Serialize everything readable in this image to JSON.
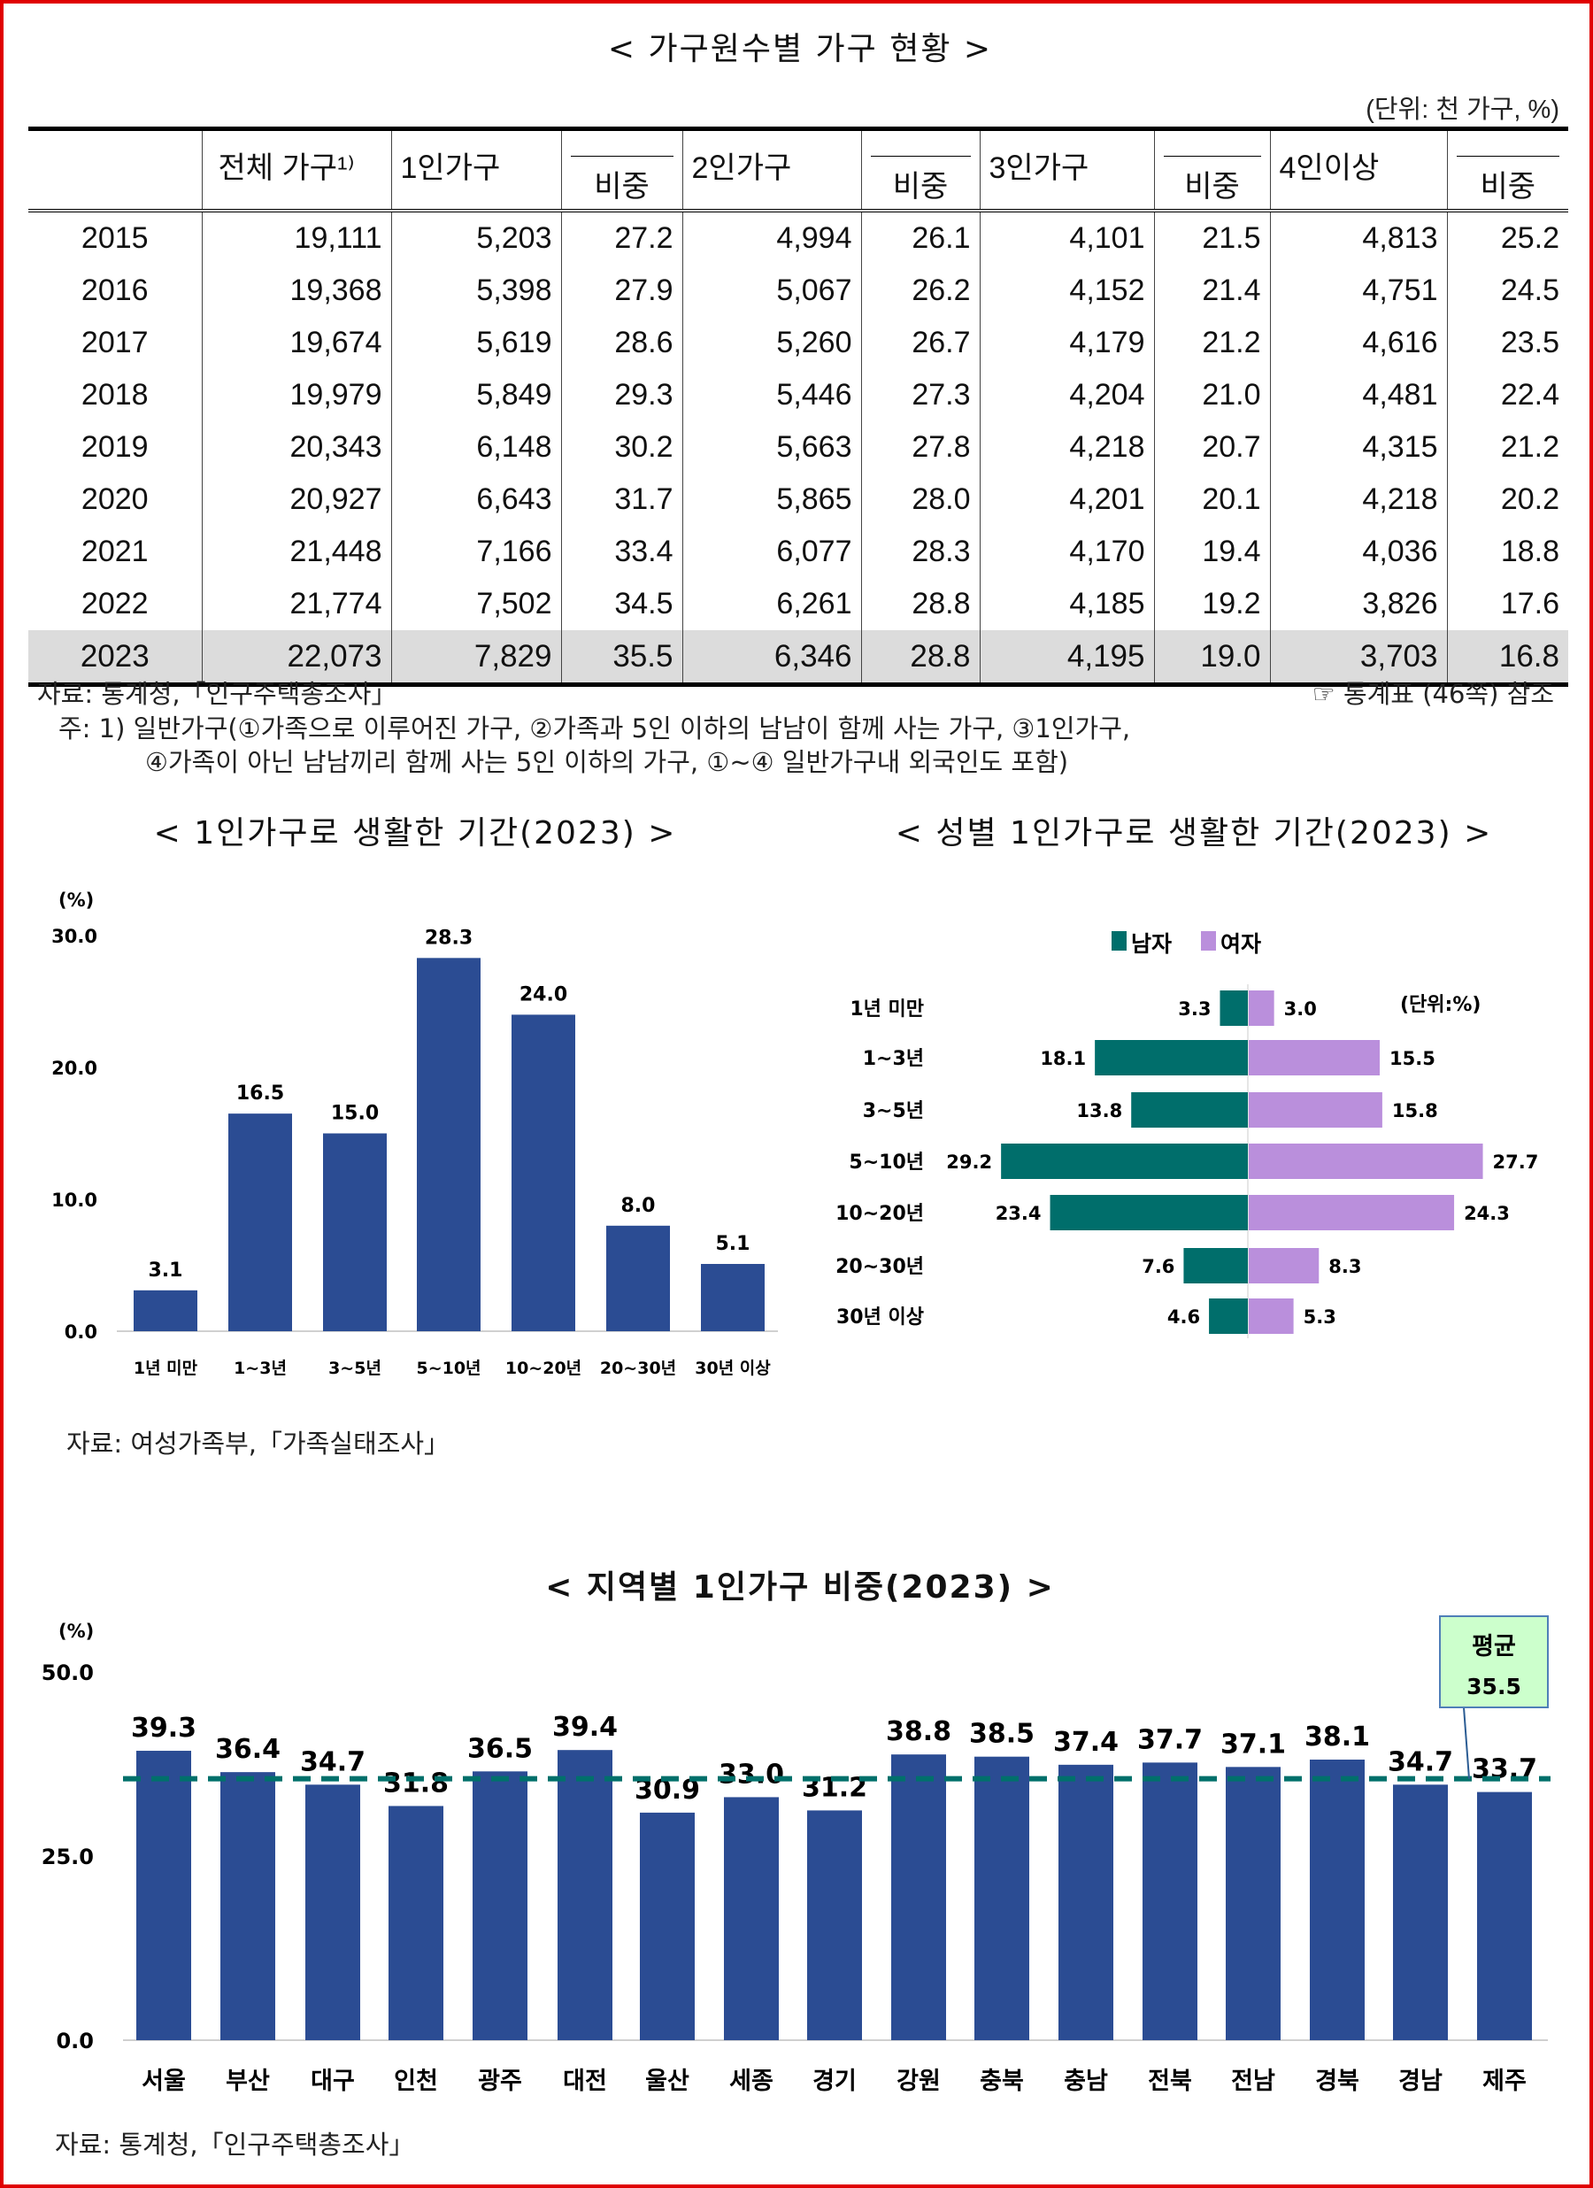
{
  "table_section": {
    "title": "< 가구원수별 가구 현황 >",
    "unit": "(단위: 천 가구, %)",
    "headers": [
      "",
      "전체 가구¹⁾",
      "1인가구",
      "비중",
      "2인가구",
      "비중",
      "3인가구",
      "비중",
      "4인이상",
      "비중"
    ],
    "rows": [
      [
        "2015",
        "19,111",
        "5,203",
        "27.2",
        "4,994",
        "26.1",
        "4,101",
        "21.5",
        "4,813",
        "25.2"
      ],
      [
        "2016",
        "19,368",
        "5,398",
        "27.9",
        "5,067",
        "26.2",
        "4,152",
        "21.4",
        "4,751",
        "24.5"
      ],
      [
        "2017",
        "19,674",
        "5,619",
        "28.6",
        "5,260",
        "26.7",
        "4,179",
        "21.2",
        "4,616",
        "23.5"
      ],
      [
        "2018",
        "19,979",
        "5,849",
        "29.3",
        "5,446",
        "27.3",
        "4,204",
        "21.0",
        "4,481",
        "22.4"
      ],
      [
        "2019",
        "20,343",
        "6,148",
        "30.2",
        "5,663",
        "27.8",
        "4,218",
        "20.7",
        "4,315",
        "21.2"
      ],
      [
        "2020",
        "20,927",
        "6,643",
        "31.7",
        "5,865",
        "28.0",
        "4,201",
        "20.1",
        "4,218",
        "20.2"
      ],
      [
        "2021",
        "21,448",
        "7,166",
        "33.4",
        "6,077",
        "28.3",
        "4,170",
        "19.4",
        "4,036",
        "18.8"
      ],
      [
        "2022",
        "21,774",
        "7,502",
        "34.5",
        "6,261",
        "28.8",
        "4,185",
        "19.2",
        "3,826",
        "17.6"
      ],
      [
        "2023",
        "22,073",
        "7,829",
        "35.5",
        "6,346",
        "28.8",
        "4,195",
        "19.0",
        "3,703",
        "16.8"
      ]
    ],
    "source": "자료: 통계청,「인구주택총조사」",
    "reference": "☞ 통계표 (46쪽) 참조",
    "note_line1": "주: 1) 일반가구(①가족으로 이루어진 가구, ②가족과 5인 이하의 남남이 함께 사는 가구, ③1인가구,",
    "note_line2": "④가족이 아닌 남남끼리 함께 사는 5인 이하의 가구, ①~④ 일반가구내 외국인도 포함)"
  },
  "chart_data": [
    {
      "type": "bar",
      "title": "< 1인가구로 생활한 기간(2023) >",
      "ylabel": "(%)",
      "ylim": [
        0,
        30
      ],
      "yticks": [
        "0.0",
        "10.0",
        "20.0",
        "30.0"
      ],
      "categories": [
        "1년 미만",
        "1~3년",
        "3~5년",
        "5~10년",
        "10~20년",
        "20~30년",
        "30년 이상"
      ],
      "values": [
        3.1,
        16.5,
        15.0,
        28.3,
        24.0,
        8.0,
        5.1
      ],
      "labels": [
        "3.1",
        "16.5",
        "15.0",
        "28.3",
        "24.0",
        "8.0",
        "5.1"
      ],
      "color": "#2B4C93",
      "grid": false,
      "source": "자료:  여성가족부,「가족실태조사」"
    },
    {
      "type": "bar",
      "orientation": "horizontal-diverging",
      "title": "< 성별 1인가구로 생활한 기간(2023) >",
      "unit": "(단위:%)",
      "legend_position": "top",
      "categories": [
        "1년 미만",
        "1~3년",
        "3~5년",
        "5~10년",
        "10~20년",
        "20~30년",
        "30년 이상"
      ],
      "series": [
        {
          "name": "남자",
          "values": [
            3.3,
            18.1,
            13.8,
            29.2,
            23.4,
            7.6,
            4.6
          ],
          "labels": [
            "3.3",
            "18.1",
            "13.8",
            "29.2",
            "23.4",
            "7.6",
            "4.6"
          ],
          "color": "#006E6B"
        },
        {
          "name": "여자",
          "values": [
            3.0,
            15.5,
            15.8,
            27.7,
            24.3,
            8.3,
            5.3
          ],
          "labels": [
            "3.0",
            "15.5",
            "15.8",
            "27.7",
            "24.3",
            "8.3",
            "5.3"
          ],
          "color": "#BA8FDC"
        }
      ]
    },
    {
      "type": "bar",
      "title": "< 지역별 1인가구 비중(2023) >",
      "ylabel": "(%)",
      "ylim": [
        0,
        50
      ],
      "yticks": [
        "0.0",
        "25.0",
        "50.0"
      ],
      "categories": [
        "서울",
        "부산",
        "대구",
        "인천",
        "광주",
        "대전",
        "울산",
        "세종",
        "경기",
        "강원",
        "충북",
        "충남",
        "전북",
        "전남",
        "경북",
        "경남",
        "제주"
      ],
      "values": [
        39.3,
        36.4,
        34.7,
        31.8,
        36.5,
        39.4,
        30.9,
        33.0,
        31.2,
        38.8,
        38.5,
        37.4,
        37.7,
        37.1,
        38.1,
        34.7,
        33.7
      ],
      "labels": [
        "39.3",
        "36.4",
        "34.7",
        "31.8",
        "36.5",
        "39.4",
        "30.9",
        "33.0",
        "31.2",
        "38.8",
        "38.5",
        "37.4",
        "37.7",
        "37.1",
        "38.1",
        "34.7",
        "33.7"
      ],
      "color": "#2B4C93",
      "average": {
        "label": "평균",
        "value": 35.5,
        "value_label": "35.5",
        "line_color": "#00706B",
        "box_color": "#CCFFCC"
      },
      "source": "자료:  통계청,「인구주택총조사」"
    }
  ]
}
